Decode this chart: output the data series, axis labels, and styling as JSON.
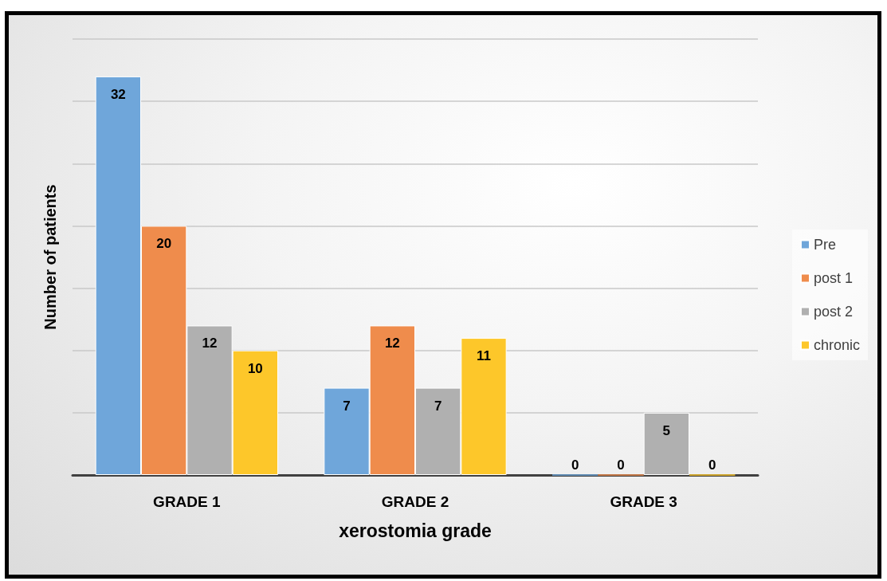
{
  "chart_data": {
    "type": "bar",
    "xlabel": "xerostomia grade",
    "ylabel": "Number of patients",
    "categories": [
      "GRADE 1",
      "GRADE 2",
      "GRADE 3"
    ],
    "series": [
      {
        "name": "Pre",
        "color": "#6fa6da",
        "values": [
          32,
          7,
          0
        ]
      },
      {
        "name": "post 1",
        "color": "#ef8c4c",
        "values": [
          20,
          12,
          0
        ]
      },
      {
        "name": "post 2",
        "color": "#b0b0b0",
        "values": [
          12,
          7,
          5
        ]
      },
      {
        "name": "chronic",
        "color": "#fdc72a",
        "values": [
          10,
          11,
          0
        ]
      }
    ],
    "ylim": [
      0,
      35
    ],
    "yticks": [
      {
        "value": 0,
        "label": null
      },
      {
        "value": 5,
        "label": null
      },
      {
        "value": 10,
        "label": null
      },
      {
        "value": 15,
        "label": null
      },
      {
        "value": 20,
        "label": null
      },
      {
        "value": 25,
        "label": null
      },
      {
        "value": 30,
        "label": null
      },
      {
        "value": 35,
        "label": null
      }
    ],
    "grid": "y",
    "legend": "right",
    "tick_labels": "x",
    "data_labels": true
  }
}
